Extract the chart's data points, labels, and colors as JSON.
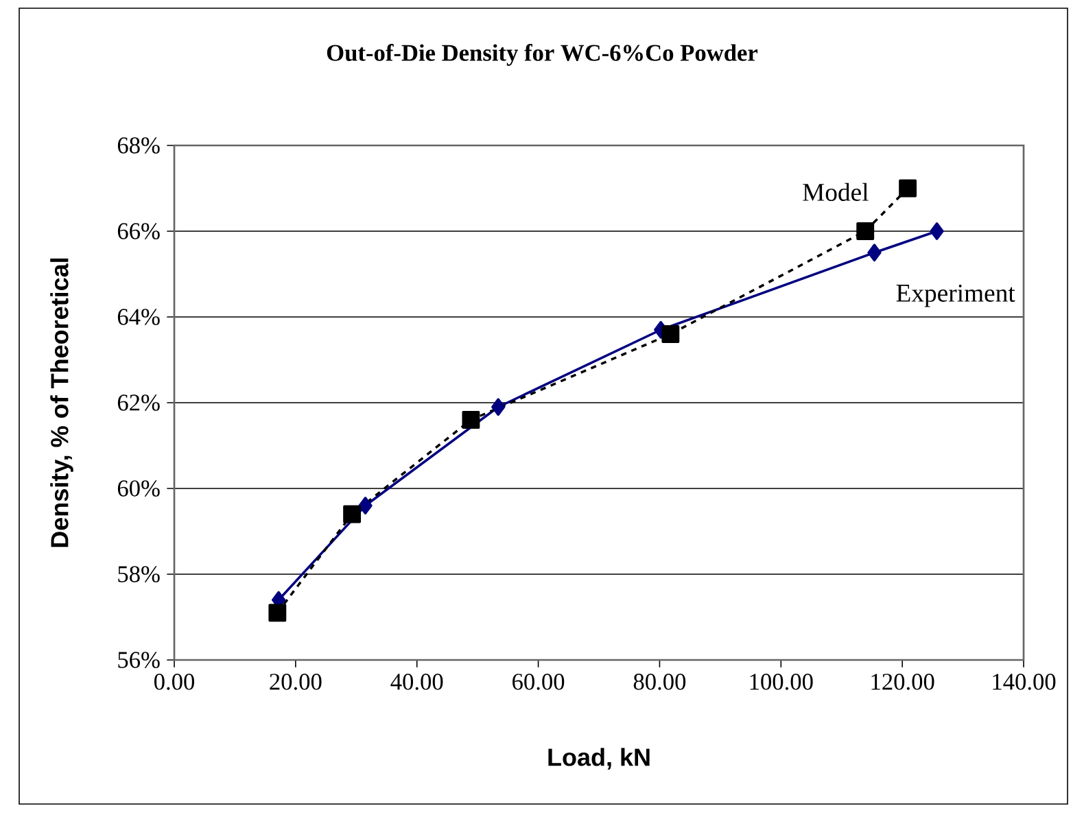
{
  "chart_data": {
    "type": "line",
    "title": "Out-of-Die Density for WC-6%Co Powder",
    "xlabel": "Load, kN",
    "ylabel": "Density, % of Theoretical",
    "xlim": [
      0,
      140
    ],
    "xticks": [
      {
        "value": 0,
        "label": "0.00"
      },
      {
        "value": 20,
        "label": "20.00"
      },
      {
        "value": 40,
        "label": "40.00"
      },
      {
        "value": 60,
        "label": "60.00"
      },
      {
        "value": 80,
        "label": "80.00"
      },
      {
        "value": 100,
        "label": "100.00"
      },
      {
        "value": 120,
        "label": "120.00"
      },
      {
        "value": 140,
        "label": "140.00"
      }
    ],
    "ylim": [
      56,
      68
    ],
    "yticks": [
      {
        "value": 56,
        "label": "56%"
      },
      {
        "value": 58,
        "label": "58%"
      },
      {
        "value": 60,
        "label": "60%"
      },
      {
        "value": 62,
        "label": "62%"
      },
      {
        "value": 64,
        "label": "64%"
      },
      {
        "value": 66,
        "label": "66%"
      },
      {
        "value": 68,
        "label": "68%"
      }
    ],
    "grid": "y",
    "series": [
      {
        "name": "Experiment",
        "color": "#000080",
        "marker": "diamond",
        "line_style": "solid",
        "x": [
          17.2,
          31.5,
          53.4,
          80.2,
          115.4,
          125.7
        ],
        "values": [
          57.4,
          59.6,
          61.9,
          63.7,
          65.5,
          66.0
        ]
      },
      {
        "name": "Model",
        "color": "#000000",
        "marker": "square",
        "line_style": "dashed",
        "x": [
          17.0,
          29.3,
          48.9,
          81.8,
          113.9,
          120.9
        ],
        "values": [
          57.1,
          59.4,
          61.6,
          63.6,
          66.0,
          67.0
        ]
      }
    ]
  }
}
